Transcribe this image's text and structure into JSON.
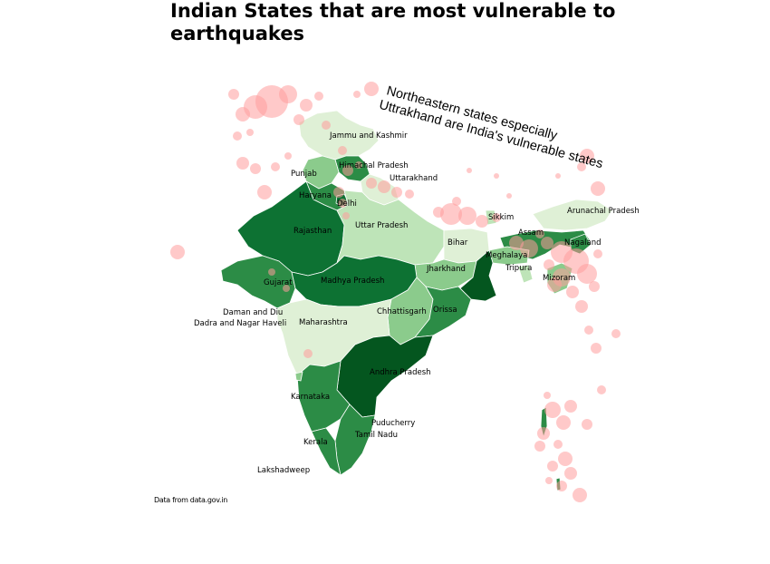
{
  "title": "Indian States that are most vulnerable to earthquakes",
  "annotation": {
    "line1": "Northeastern states especially",
    "line2": "Uttrakhand are India's vulnerable states"
  },
  "source": "Data from data.gov.in",
  "colors": {
    "darkest": "#04561f",
    "dark": "#0d7233",
    "mid": "#2c8c46",
    "light": "#8bcb8c",
    "lighter": "#bee4b8",
    "lightest": "#dff0d6",
    "quake": "#ff9c9c"
  },
  "states": [
    {
      "id": "jammu-and-kashmir",
      "label": "Jammu and Kashmir"
    },
    {
      "id": "himachal-pradesh",
      "label": "Himachal Pradesh"
    },
    {
      "id": "punjab",
      "label": "Punjab"
    },
    {
      "id": "uttarakhand",
      "label": "Uttarakhand"
    },
    {
      "id": "haryana",
      "label": "Haryana"
    },
    {
      "id": "delhi",
      "label": "Delhi"
    },
    {
      "id": "rajasthan",
      "label": "Rajasthan"
    },
    {
      "id": "uttar-pradesh",
      "label": "Uttar Pradesh"
    },
    {
      "id": "sikkim",
      "label": "Sikkim"
    },
    {
      "id": "arunachal-pradesh",
      "label": "Arunachal Pradesh"
    },
    {
      "id": "assam",
      "label": "Assam"
    },
    {
      "id": "nagaland",
      "label": "Nagaland"
    },
    {
      "id": "bihar",
      "label": "Bihar"
    },
    {
      "id": "meghalaya",
      "label": "Meghalaya"
    },
    {
      "id": "tripura",
      "label": "Tripura"
    },
    {
      "id": "mizoram",
      "label": "Mizoram"
    },
    {
      "id": "jharkhand",
      "label": "Jharkhand"
    },
    {
      "id": "gujarat",
      "label": "Gujarat"
    },
    {
      "id": "madhya-pradesh",
      "label": "Madhya Pradesh"
    },
    {
      "id": "daman-and-diu",
      "label": "Daman and Diu"
    },
    {
      "id": "dadra-and-nagar-haveli",
      "label": "Dadra and Nagar Haveli"
    },
    {
      "id": "chhattisgarh",
      "label": "Chhattisgarh"
    },
    {
      "id": "orissa",
      "label": "Orissa"
    },
    {
      "id": "maharashtra",
      "label": "Maharashtra"
    },
    {
      "id": "andhra-pradesh",
      "label": "Andhra Pradesh"
    },
    {
      "id": "karnataka",
      "label": "Karnataka"
    },
    {
      "id": "puducherry",
      "label": "Puducherry"
    },
    {
      "id": "tamil-nadu",
      "label": "Tamil Nadu"
    },
    {
      "id": "kerala",
      "label": "Kerala"
    },
    {
      "id": "lakshadweep",
      "label": "Lakshadweep"
    }
  ]
}
